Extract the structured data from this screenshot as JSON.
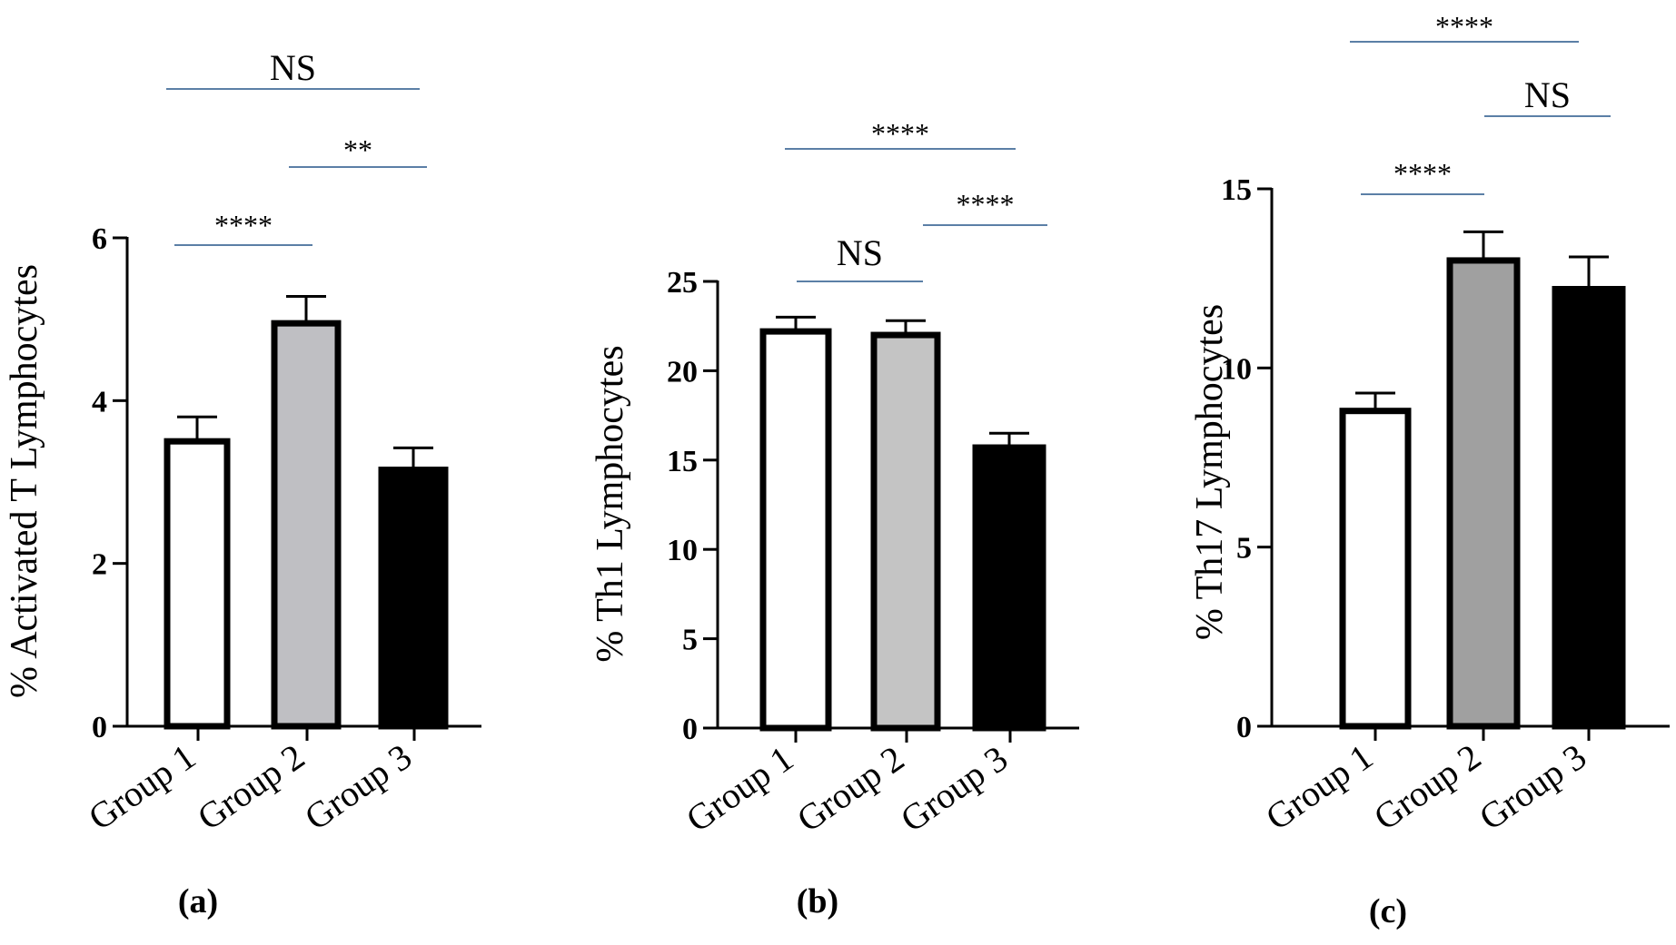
{
  "chart_data": [
    {
      "type": "bar",
      "panel_label": "(a)",
      "ylabel": "% Activated T Lymphocytes",
      "categories": [
        "Group 1",
        "Group 2",
        "Group 3"
      ],
      "values": [
        3.5,
        4.95,
        3.15
      ],
      "errors": [
        0.3,
        0.33,
        0.27
      ],
      "ylim": [
        0,
        6
      ],
      "yticks": [
        0,
        2,
        4,
        6
      ],
      "bar_colors": [
        "#ffffff",
        "#bfbfc3",
        "#000000"
      ],
      "comparisons": [
        {
          "label": "NS",
          "from": "Group 1",
          "to": "Group 3"
        },
        {
          "label": "**",
          "from": "Group 2",
          "to": "Group 3"
        },
        {
          "label": "****",
          "from": "Group 1",
          "to": "Group 2"
        }
      ]
    },
    {
      "type": "bar",
      "panel_label": "(b)",
      "ylabel": "% Th1 Lymphocytes",
      "categories": [
        "Group 1",
        "Group 2",
        "Group 3"
      ],
      "values": [
        22.2,
        22.0,
        15.7
      ],
      "errors": [
        0.8,
        0.8,
        0.8
      ],
      "ylim": [
        0,
        25
      ],
      "yticks": [
        0,
        5,
        10,
        15,
        20,
        25
      ],
      "bar_colors": [
        "#ffffff",
        "#c4c4c4",
        "#000000"
      ],
      "comparisons": [
        {
          "label": "****",
          "from": "Group 1",
          "to": "Group 3"
        },
        {
          "label": "****",
          "from": "Group 2",
          "to": "Group 3"
        },
        {
          "label": "NS",
          "from": "Group 1",
          "to": "Group 2"
        }
      ]
    },
    {
      "type": "bar",
      "panel_label": "(c)",
      "ylabel": "% Th17 Lymphocytes",
      "categories": [
        "Group 1",
        "Group 2",
        "Group 3"
      ],
      "values": [
        8.8,
        13.0,
        12.2
      ],
      "errors": [
        0.5,
        0.8,
        0.9
      ],
      "ylim": [
        0,
        15
      ],
      "yticks": [
        0,
        5,
        10,
        15
      ],
      "bar_colors": [
        "#ffffff",
        "#a0a0a0",
        "#000000"
      ],
      "comparisons": [
        {
          "label": "****",
          "from": "Group 1",
          "to": "Group 3"
        },
        {
          "label": "NS",
          "from": "Group 2",
          "to": "Group 3"
        },
        {
          "label": "****",
          "from": "Group 1",
          "to": "Group 2"
        }
      ]
    }
  ],
  "colors": {
    "axis": "#000000",
    "comparison_line": "#5b7fa6"
  }
}
